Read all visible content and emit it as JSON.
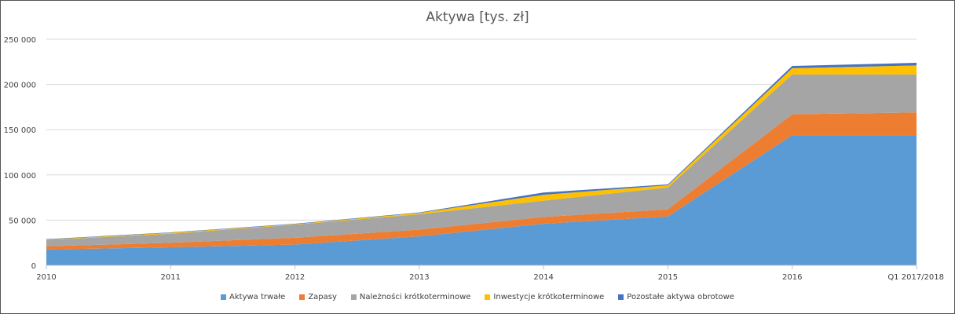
{
  "chart_data": {
    "type": "area",
    "stacked": true,
    "title": "Aktywa [tys. zł]",
    "xlabel": "",
    "ylabel": "",
    "categories": [
      "2010",
      "2011",
      "2012",
      "2013",
      "2014",
      "2015",
      "2016",
      "Q1 2017/2018"
    ],
    "ylim": [
      0,
      250000
    ],
    "yticks": [
      0,
      50000,
      100000,
      150000,
      200000,
      250000
    ],
    "ytick_labels": [
      "0",
      "50 000",
      "100 000",
      "150 000",
      "200 000",
      "250 000"
    ],
    "grid": true,
    "legend_position": "bottom",
    "series": [
      {
        "name": "Aktywa trwałe",
        "color": "#5b9bd5",
        "values": [
          17500,
          20000,
          23000,
          32000,
          46000,
          54000,
          144000,
          144000
        ]
      },
      {
        "name": "Zapasy",
        "color": "#ed7d31",
        "values": [
          3500,
          5000,
          7500,
          7500,
          7500,
          8000,
          23000,
          25000
        ]
      },
      {
        "name": "Należności krótkoterminowe",
        "color": "#a5a5a5",
        "values": [
          7000,
          10000,
          14500,
          17000,
          18000,
          24000,
          44000,
          42000
        ]
      },
      {
        "name": "Inwestycje krótkoterminowe",
        "color": "#ffc000",
        "values": [
          500,
          1000,
          500,
          1500,
          6500,
          2500,
          7000,
          10000
        ]
      },
      {
        "name": "Pozostałe aktywa obrotowe",
        "color": "#4472c4",
        "values": [
          500,
          500,
          500,
          500,
          2500,
          1000,
          2500,
          3000
        ]
      }
    ]
  }
}
